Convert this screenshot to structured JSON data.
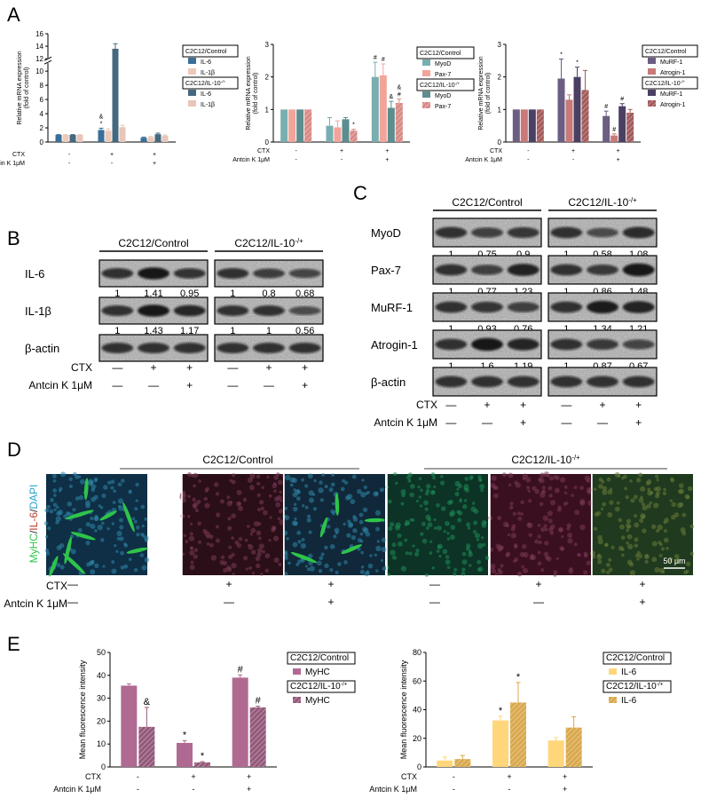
{
  "colors": {
    "il6_control": "#3a6e98",
    "il1b_control": "#ecc9b8",
    "il6_il10": "#44687f",
    "il1b_il10": "#e8c6b9",
    "myod_control": "#79aeb0",
    "pax7_control": "#f2a49a",
    "myod_il10": "#5d8d8f",
    "pax7_il10": "#d98a86",
    "murf1_control": "#6c5d82",
    "atrogin1_control": "#c77a78",
    "murf1_il10": "#4b4063",
    "atrogin1_il10": "#a25a5a",
    "myhc_control": "#b06a92",
    "myhc_il10": "#94597a",
    "il6_fluor_control": "#ffd77a",
    "il6_fluor_il10": "#d9a94e",
    "myhc_stain": "#2ec44a",
    "il6_stain": "#c0392b",
    "dapi_stain": "#2aa5c9"
  },
  "panel_letters": {
    "a": "A",
    "b": "B",
    "c": "C",
    "d": "D",
    "e": "E"
  },
  "common": {
    "ctx": "CTX",
    "antcin": "Antcin K 1μM",
    "ctx_row": [
      "-",
      "+",
      "+"
    ],
    "antcin_row": [
      "-",
      "-",
      "+"
    ],
    "blot_ctx_row": [
      "—",
      "+",
      "+"
    ],
    "blot_antcin_row": [
      "—",
      "—",
      "+"
    ],
    "group_control": "C2C12/Control",
    "group_il10": "C2C12/IL-10-/+"
  },
  "chart_data": [
    {
      "type": "bar",
      "id": "A1",
      "ylabel": "Relative mRNA expression\n(fold of control)",
      "yticks": [
        0,
        2,
        4,
        6,
        8,
        10,
        12,
        14,
        16
      ],
      "ytick_labels": [
        "0",
        "2",
        "4",
        "6",
        "8",
        "10",
        "12",
        "14",
        "16"
      ],
      "ylim": [
        0,
        16
      ],
      "axis_break": [
        11,
        12
      ],
      "groups": 3,
      "series": [
        {
          "name": "IL-6",
          "legend_group": "C2C12/Control",
          "values": [
            1.0,
            1.7,
            0.6
          ],
          "errors": [
            0.05,
            0.25,
            0.1
          ],
          "sig": [
            "",
            "&\n*",
            ""
          ]
        },
        {
          "name": "IL-1β",
          "legend_group": "C2C12/Control",
          "values": [
            1.0,
            1.6,
            0.7
          ],
          "errors": [
            0.05,
            0.25,
            0.1
          ],
          "sig": [
            "",
            "",
            ""
          ]
        },
        {
          "name": "IL-6",
          "legend_group": "C2C12/IL-10-/+",
          "values": [
            1.0,
            13.6,
            1.1
          ],
          "errors": [
            0.05,
            0.8,
            0.15
          ],
          "sig": [
            "",
            "",
            ""
          ]
        },
        {
          "name": "IL-1β",
          "legend_group": "C2C12/IL-10-/+",
          "values": [
            1.0,
            2.1,
            0.9
          ],
          "errors": [
            0.05,
            0.25,
            0.1
          ],
          "sig": [
            "",
            "",
            ""
          ]
        }
      ]
    },
    {
      "type": "bar",
      "id": "A2",
      "ylabel": "Relative mRNA expression\n(fold of control)",
      "yticks": [
        0,
        1,
        2,
        3
      ],
      "ytick_labels": [
        "0",
        "1",
        "2",
        "3"
      ],
      "ylim": [
        0,
        3
      ],
      "groups": 3,
      "series": [
        {
          "name": "MyoD",
          "legend_group": "C2C12/Control",
          "values": [
            1.0,
            0.5,
            2.0
          ],
          "errors": [
            0.0,
            0.25,
            0.45
          ],
          "sig": [
            "",
            "",
            "#"
          ]
        },
        {
          "name": "Pax-7",
          "legend_group": "C2C12/Control",
          "values": [
            1.0,
            0.45,
            2.05
          ],
          "errors": [
            0.0,
            0.2,
            0.35
          ],
          "sig": [
            "",
            "",
            "#"
          ]
        },
        {
          "name": "MyoD",
          "legend_group": "C2C12/IL-10-/+",
          "values": [
            1.0,
            0.7,
            1.05
          ],
          "errors": [
            0.0,
            0.05,
            0.2
          ],
          "sig": [
            "",
            "",
            "&"
          ]
        },
        {
          "name": "Pax-7",
          "legend_group": "C2C12/IL-10-/+",
          "values": [
            1.0,
            0.35,
            1.2
          ],
          "errors": [
            0.0,
            0.04,
            0.12
          ],
          "sig": [
            "",
            "*",
            "&\n#"
          ]
        }
      ]
    },
    {
      "type": "bar",
      "id": "A3",
      "ylabel": "Relative mRNA expression\n(fold of control)",
      "yticks": [
        0,
        1,
        2,
        3
      ],
      "ytick_labels": [
        "0",
        "1",
        "2",
        "3"
      ],
      "ylim": [
        0,
        3
      ],
      "groups": 3,
      "series": [
        {
          "name": "MuRF-1",
          "legend_group": "C2C12/Control",
          "values": [
            1.0,
            1.95,
            0.8
          ],
          "errors": [
            0.0,
            0.6,
            0.15
          ],
          "sig": [
            "",
            "*",
            "#"
          ]
        },
        {
          "name": "Atrogin-1",
          "legend_group": "C2C12/Control",
          "values": [
            1.0,
            1.3,
            0.2
          ],
          "errors": [
            0.0,
            0.15,
            0.05
          ],
          "sig": [
            "",
            "",
            "#"
          ]
        },
        {
          "name": "MuRF-1",
          "legend_group": "C2C12/IL-10-/+",
          "values": [
            1.0,
            2.0,
            1.1
          ],
          "errors": [
            0.0,
            0.3,
            0.08
          ],
          "sig": [
            "",
            "*",
            "#"
          ]
        },
        {
          "name": "Atrogin-1",
          "legend_group": "C2C12/IL-10-/+",
          "values": [
            1.0,
            1.6,
            0.9
          ],
          "errors": [
            0.0,
            0.6,
            0.1
          ],
          "sig": [
            "",
            "",
            ""
          ]
        }
      ]
    },
    {
      "type": "bar",
      "id": "E1",
      "ylabel": "Mean fluorescence intensity",
      "yticks": [
        0,
        10,
        20,
        30,
        40,
        50
      ],
      "ytick_labels": [
        "0",
        "10",
        "20",
        "30",
        "40",
        "50"
      ],
      "ylim": [
        0,
        50
      ],
      "groups": 3,
      "series": [
        {
          "name": "MyHC",
          "legend_group": "C2C12/Control",
          "values": [
            35.5,
            10.5,
            39.0
          ],
          "errors": [
            0.8,
            1.0,
            1.2
          ],
          "sig": [
            "",
            "*",
            "#"
          ]
        },
        {
          "name": "MyHC",
          "legend_group": "C2C12/IL-10-/+",
          "values": [
            17.5,
            2.0,
            26.0
          ],
          "errors": [
            8.5,
            0.3,
            0.5
          ],
          "sig": [
            "&",
            "*",
            "#"
          ]
        }
      ]
    },
    {
      "type": "bar",
      "id": "E2",
      "ylabel": "Mean fluorescence intensity",
      "yticks": [
        0,
        20,
        40,
        60,
        80
      ],
      "ytick_labels": [
        "0",
        "20",
        "40",
        "60",
        "80"
      ],
      "ylim": [
        0,
        80
      ],
      "groups": 3,
      "series": [
        {
          "name": "IL-6",
          "legend_group": "C2C12/Control",
          "values": [
            4.5,
            32.5,
            18.5
          ],
          "errors": [
            2.5,
            3.0,
            2.0
          ],
          "sig": [
            "",
            "*",
            ""
          ]
        },
        {
          "name": "IL-6",
          "legend_group": "C2C12/IL-10-/+",
          "values": [
            5.5,
            45.0,
            27.5
          ],
          "errors": [
            2.5,
            14.0,
            7.5
          ],
          "sig": [
            "",
            "*",
            ""
          ]
        }
      ]
    }
  ],
  "blots_b": {
    "rows": [
      {
        "label": "IL-6",
        "control": [
          "1",
          "1.41",
          "0.95"
        ],
        "il10": [
          "1",
          "0.8",
          "0.68"
        ]
      },
      {
        "label": "IL-1β",
        "control": [
          "1",
          "1.43",
          "1.17"
        ],
        "il10": [
          "1",
          "1",
          "0.56"
        ]
      },
      {
        "label": "β-actin",
        "control": [],
        "il10": []
      }
    ]
  },
  "blots_c": {
    "rows": [
      {
        "label": "MyoD",
        "control": [
          "1",
          "0.75",
          "0.9"
        ],
        "il10": [
          "1",
          "0.58",
          "1.08"
        ]
      },
      {
        "label": "Pax-7",
        "control": [
          "1",
          "0.77",
          "1.23"
        ],
        "il10": [
          "1",
          "0.86",
          "1.48"
        ]
      },
      {
        "label": "MuRF-1",
        "control": [
          "1",
          "0.93",
          "0.76"
        ],
        "il10": [
          "1",
          "1.34",
          "1.21"
        ]
      },
      {
        "label": "Atrogin-1",
        "control": [
          "1",
          "1.6",
          "1.19"
        ],
        "il10": [
          "1",
          "0.87",
          "0.67"
        ]
      },
      {
        "label": "β-actin",
        "control": [],
        "il10": []
      }
    ]
  },
  "panel_d": {
    "ylabel_parts": [
      "MyHC",
      "/",
      "IL-6",
      "/",
      "DAPI"
    ],
    "scale_bar": "50 μm"
  }
}
